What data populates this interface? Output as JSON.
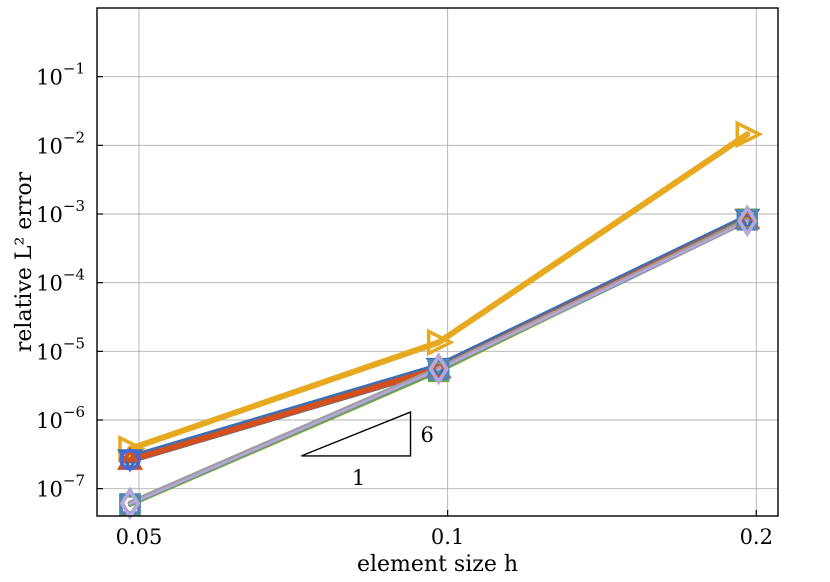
{
  "chart_data": {
    "type": "line",
    "xscale": "log",
    "yscale": "log",
    "xlabel": "element size h",
    "ylabel": "relative L² error",
    "xlim": [
      0.0455,
      0.21
    ],
    "ylim": [
      4e-08,
      1
    ],
    "xticks": [
      {
        "value": 0.05,
        "label": "0.05"
      },
      {
        "value": 0.1,
        "label": "0.1"
      },
      {
        "value": 0.2,
        "label": "0.2"
      }
    ],
    "yticks": [
      {
        "value": 1e-07,
        "mant": "10",
        "exp": "−7"
      },
      {
        "value": 1e-06,
        "mant": "10",
        "exp": "−6"
      },
      {
        "value": 1e-05,
        "mant": "10",
        "exp": "−5"
      },
      {
        "value": 0.0001,
        "mant": "10",
        "exp": "−4"
      },
      {
        "value": 0.001,
        "mant": "10",
        "exp": "−3"
      },
      {
        "value": 0.01,
        "mant": "10",
        "exp": "−2"
      },
      {
        "value": 0.1,
        "mant": "10",
        "exp": "−1"
      }
    ],
    "grid": true,
    "x": [
      0.049,
      0.098,
      0.196
    ],
    "series": [
      {
        "color": "#E6A91F",
        "marker": "triangle-right",
        "values": [
          3.8e-07,
          1.35e-05,
          0.0145
        ]
      },
      {
        "color": "#3D6FB4",
        "marker": "triangle-down",
        "values": [
          2.7e-07,
          5.8e-06,
          0.00086
        ]
      },
      {
        "color": "#D2501E",
        "marker": "triangle-up",
        "values": [
          2.6e-07,
          5.6e-06,
          0.00083
        ]
      },
      {
        "color": "#76A832",
        "marker": "square",
        "values": [
          5.8e-08,
          5.1e-06,
          0.00084
        ]
      },
      {
        "color": "#4E86B4",
        "marker": "square",
        "values": [
          6e-08,
          5.4e-06,
          0.00082
        ]
      },
      {
        "color": "#9E9E9E",
        "marker": "diamond",
        "values": [
          6.2e-08,
          5.6e-06,
          0.0008
        ]
      },
      {
        "color": "#B7A6E0",
        "marker": "diamond",
        "values": [
          6e-08,
          5.5e-06,
          0.00079
        ]
      },
      {
        "color": "#4466E0",
        "marker": "circle",
        "values": [
          2.65e-07,
          null,
          null
        ]
      }
    ],
    "annotations": {
      "slope_triangle": {
        "rise_label": "6",
        "run_label": "1"
      }
    }
  }
}
